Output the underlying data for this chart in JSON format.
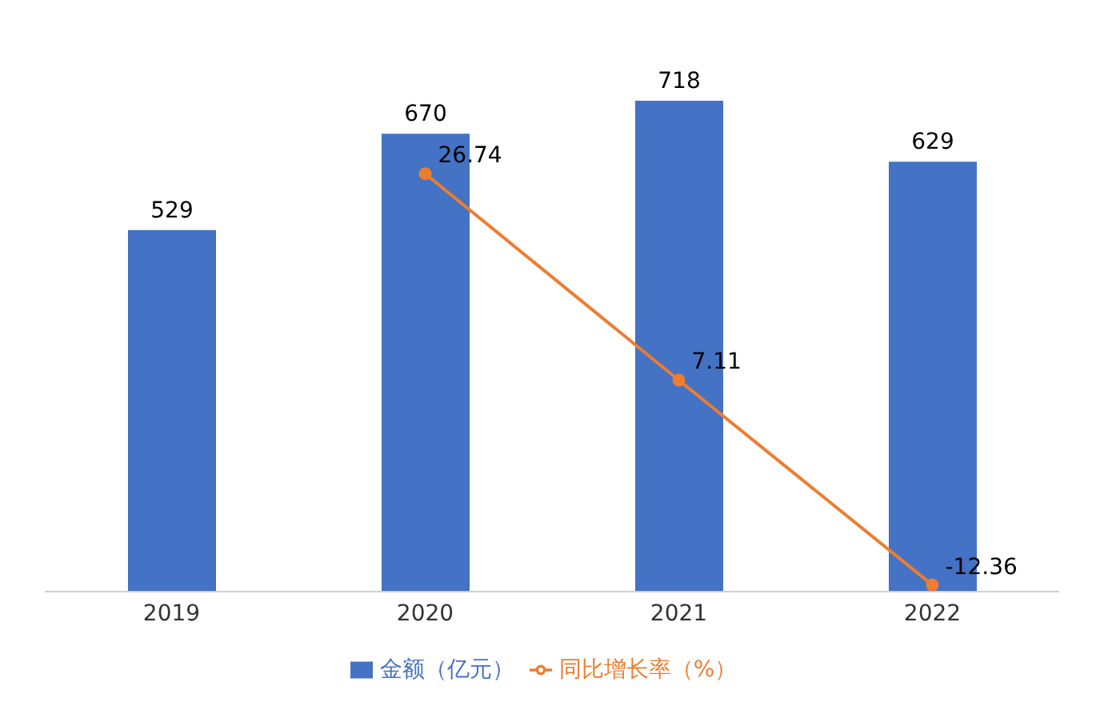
{
  "chart_data": {
    "type": "bar",
    "categories": [
      "2019",
      "2020",
      "2021",
      "2022"
    ],
    "series": [
      {
        "name": "金额（亿元）",
        "color": "#4472c4",
        "values": [
          529,
          670,
          718,
          629
        ]
      },
      {
        "name": "同比增长率（%）",
        "type": "line",
        "axis": "y2",
        "color": "#ed7d31",
        "values": [
          null,
          26.74,
          7.11,
          -12.36
        ]
      }
    ],
    "data_labels": true,
    "legend": "bottom",
    "marker": "circle"
  }
}
